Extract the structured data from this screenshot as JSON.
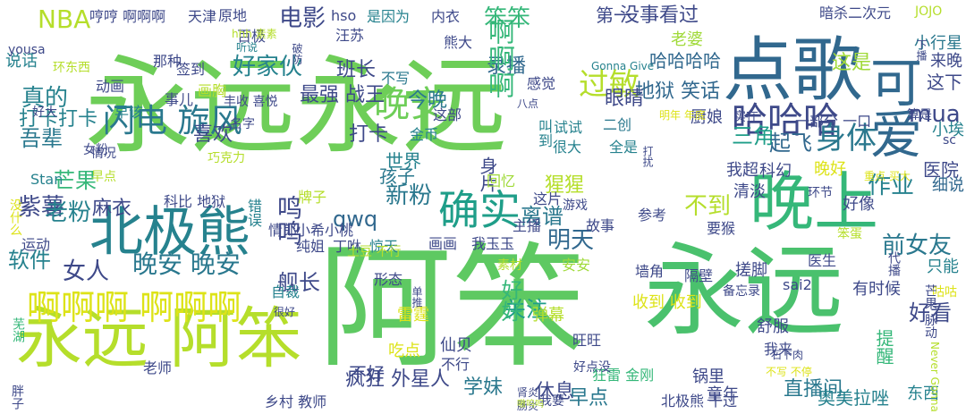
{
  "words": [
    {
      "text": "永远永远",
      "color": "#6ece58"
    },
    {
      "text": "阿笨",
      "color": "#5ec962"
    },
    {
      "text": "永远",
      "color": "#4ac16d"
    },
    {
      "text": "点歌",
      "color": "#31688e"
    },
    {
      "text": "晚上",
      "color": "#35b779"
    },
    {
      "text": "永远 阿笨",
      "color": "#b5de2b"
    },
    {
      "text": "北极熊",
      "color": "#26828e"
    },
    {
      "text": "啊啊啊 啊啊啊",
      "color": "#dde318"
    },
    {
      "text": "可爱",
      "color": "#31688e"
    },
    {
      "text": "确实",
      "color": "#1f9e89"
    },
    {
      "text": "哈哈哈",
      "color": "#3e4989"
    },
    {
      "text": "闪电 旋风",
      "color": "#2a788e"
    },
    {
      "text": "晚安",
      "color": "#6ece58"
    },
    {
      "text": "过敏",
      "color": "#b5de2b"
    },
    {
      "text": "身体",
      "color": "#2a788e"
    },
    {
      "text": "晚安 晚安",
      "color": "#2a788e"
    },
    {
      "text": "NBA",
      "color": "#b5de2b"
    },
    {
      "text": "电影",
      "color": "#3e4989"
    },
    {
      "text": "笨笨",
      "color": "#35b779"
    },
    {
      "text": "女人",
      "color": "#3e4989"
    },
    {
      "text": "真的",
      "color": "#26828e"
    },
    {
      "text": "打卡",
      "color": "#3e4989"
    },
    {
      "text": "吾辈",
      "color": "#2a788e"
    },
    {
      "text": "芒果",
      "color": "#35b779"
    },
    {
      "text": "好家伙",
      "color": "#26828e"
    },
    {
      "text": "离谱",
      "color": "#2a788e"
    },
    {
      "text": "录播",
      "color": "#31688e"
    },
    {
      "text": "新粉",
      "color": "#2a788e"
    },
    {
      "text": "明天",
      "color": "#31688e"
    },
    {
      "text": "关注",
      "color": "#1f9e89"
    },
    {
      "text": "好看",
      "color": "#3e4989"
    },
    {
      "text": "前女友",
      "color": "#2a788e"
    },
    {
      "text": "作业",
      "color": "#26828e"
    },
    {
      "text": "没事看过",
      "color": "#3e4989"
    },
    {
      "text": "qwq",
      "color": "#31688e"
    },
    {
      "text": "鸣鸣",
      "color": "#3e4989"
    },
    {
      "text": "不到",
      "color": "#b5de2b"
    },
    {
      "text": "紫薯",
      "color": "#3e4989"
    },
    {
      "text": "老粉",
      "color": "#26828e"
    },
    {
      "text": "啊啊啊",
      "color": "#35b779"
    },
    {
      "text": "地狱 笑话",
      "color": "#31688e"
    },
    {
      "text": "三角",
      "color": "#1f9e89"
    },
    {
      "text": "起飞",
      "color": "#31688e"
    },
    {
      "text": "mua",
      "color": "#3e4989"
    },
    {
      "text": "这是",
      "color": "#a0da39"
    },
    {
      "text": "班长",
      "color": "#3e4989"
    },
    {
      "text": "学妹",
      "color": "#2a788e"
    },
    {
      "text": "疯狂 外星人",
      "color": "#3e4989"
    },
    {
      "text": "哈哈哈哈",
      "color": "#31688e"
    },
    {
      "text": "舰长",
      "color": "#3e4989"
    },
    {
      "text": "软件",
      "color": "#26828e"
    },
    {
      "text": "麻衣",
      "color": "#3e4989"
    },
    {
      "text": "打卡打卡",
      "color": "#26828e"
    },
    {
      "text": "最强 战王",
      "color": "#3e4989"
    },
    {
      "text": "今晚",
      "color": "#2a788e"
    },
    {
      "text": "喜欢",
      "color": "#3e4989"
    },
    {
      "text": "直播间",
      "color": "#2a788e"
    },
    {
      "text": "奥美拉唑",
      "color": "#26828e"
    },
    {
      "text": "身片",
      "color": "#3e4989"
    },
    {
      "text": "休息",
      "color": "#3e4989"
    },
    {
      "text": "早点",
      "color": "#2a788e"
    },
    {
      "text": "好好",
      "color": "#35b779"
    },
    {
      "text": "眼睛",
      "color": "#3e4989"
    },
    {
      "text": "猩猩",
      "color": "#b5de2b"
    },
    {
      "text": "世界",
      "color": "#26828e"
    },
    {
      "text": "孩子",
      "color": "#2a788e"
    },
    {
      "text": "说话",
      "color": "#26828e"
    },
    {
      "text": "第一",
      "color": "#3e4989"
    },
    {
      "text": "老婆",
      "color": "#a0da39"
    },
    {
      "text": "小行星",
      "color": "#2a788e"
    },
    {
      "text": "来晚",
      "color": "#3e4989"
    },
    {
      "text": "这下",
      "color": "#3e4989"
    },
    {
      "text": "小埃",
      "color": "#26828e"
    },
    {
      "text": "厨娘",
      "color": "#3e4989"
    },
    {
      "text": "我超",
      "color": "#3e4989"
    },
    {
      "text": "科幻",
      "color": "#3e4989"
    },
    {
      "text": "医院",
      "color": "#3e4989"
    },
    {
      "text": "细说",
      "color": "#31688e"
    },
    {
      "text": "晚好",
      "color": "#dde318"
    },
    {
      "text": "好像",
      "color": "#3e4989"
    },
    {
      "text": "清淡",
      "color": "#3e4989"
    },
    {
      "text": "搓脚",
      "color": "#3e4989"
    },
    {
      "text": "只能",
      "color": "#26828e"
    },
    {
      "text": "锅里",
      "color": "#3e4989"
    },
    {
      "text": "童年",
      "color": "#3e4989"
    },
    {
      "text": "提醒",
      "color": "#35b779"
    },
    {
      "text": "有时候",
      "color": "#3e4989"
    },
    {
      "text": "舒服",
      "color": "#3e4989"
    },
    {
      "text": "东西",
      "color": "#26828e"
    },
    {
      "text": "吃点",
      "color": "#dde318"
    },
    {
      "text": "不好",
      "color": "#3e4989"
    },
    {
      "text": "仙贝",
      "color": "#3e4989"
    },
    {
      "text": "雷霆",
      "color": "#dde318"
    },
    {
      "text": "弹幕",
      "color": "#b5de2b"
    },
    {
      "text": "哼哼 啊啊啊",
      "color": "#3e4989"
    },
    {
      "text": "天津",
      "color": "#3e4989"
    },
    {
      "text": "原地",
      "color": "#3e4989"
    },
    {
      "text": "hso",
      "color": "#3e4989"
    },
    {
      "text": "是因为",
      "color": "#26828e"
    },
    {
      "text": "内衣",
      "color": "#3e4989"
    },
    {
      "text": "暗杀二次元",
      "color": "#3e4989"
    },
    {
      "text": "JOJO",
      "color": "#b5de2b"
    },
    {
      "text": "熊大",
      "color": "#3e4989"
    },
    {
      "text": "汪苏",
      "color": "#3e4989"
    },
    {
      "text": "百极",
      "color": "#3e4989"
    },
    {
      "text": "签到",
      "color": "#3e4989"
    },
    {
      "text": "那种",
      "color": "#3e4989"
    },
    {
      "text": "动画",
      "color": "#3e4989"
    },
    {
      "text": "事儿",
      "color": "#3e4989"
    },
    {
      "text": "画胸",
      "color": "#b5de2b"
    },
    {
      "text": "不写",
      "color": "#2a788e"
    },
    {
      "text": "早该",
      "color": "#26828e"
    },
    {
      "text": "这部",
      "color": "#3e4989"
    },
    {
      "text": "金币",
      "color": "#26828e"
    },
    {
      "text": "二创",
      "color": "#2a788e"
    },
    {
      "text": "试试",
      "color": "#26828e"
    },
    {
      "text": "全是",
      "color": "#26828e"
    },
    {
      "text": "很大",
      "color": "#26828e"
    },
    {
      "text": "回忆",
      "color": "#a0da39"
    },
    {
      "text": "这片",
      "color": "#3e4989"
    },
    {
      "text": "主播",
      "color": "#3e4989"
    },
    {
      "text": "游戏",
      "color": "#3e4989"
    },
    {
      "text": "故事",
      "color": "#3e4989"
    },
    {
      "text": "要猴",
      "color": "#3e4989"
    },
    {
      "text": "参考",
      "color": "#3e4989"
    },
    {
      "text": "画画",
      "color": "#3e4989"
    },
    {
      "text": "我玉玉",
      "color": "#3e4989"
    },
    {
      "text": "安安",
      "color": "#a0da39"
    },
    {
      "text": "素材",
      "color": "#b5de2b"
    },
    {
      "text": "丁咻",
      "color": "#3e4989"
    },
    {
      "text": "惊天",
      "color": "#26828e"
    },
    {
      "text": "形态",
      "color": "#3e4989"
    },
    {
      "text": "自裁",
      "color": "#26828e"
    },
    {
      "text": "收到 收到",
      "color": "#dde318"
    },
    {
      "text": "墙角",
      "color": "#3e4989"
    },
    {
      "text": "隔壁",
      "color": "#3e4989"
    },
    {
      "text": "医生",
      "color": "#3e4989"
    },
    {
      "text": "备忘录",
      "color": "#3e4989"
    },
    {
      "text": "sai2",
      "color": "#3e4989"
    },
    {
      "text": "咕咕",
      "color": "#dde318"
    },
    {
      "text": "旺旺",
      "color": "#3e4989"
    },
    {
      "text": "狂雷 金刚",
      "color": "#35b779"
    },
    {
      "text": "我来",
      "color": "#3e4989"
    },
    {
      "text": "好点没",
      "color": "#3e4989"
    },
    {
      "text": "北极熊 干过",
      "color": "#3e4989"
    },
    {
      "text": "乡村 教师",
      "color": "#3e4989"
    },
    {
      "text": "我要",
      "color": "#3e4989"
    },
    {
      "text": "肠炎",
      "color": "#3e4989"
    },
    {
      "text": "老师",
      "color": "#3e4989"
    },
    {
      "text": "不行",
      "color": "#3e4989"
    },
    {
      "text": "土豆 不行",
      "color": "#b5de2b"
    },
    {
      "text": "情郎",
      "color": "#3e4989"
    },
    {
      "text": "小希小桃",
      "color": "#3e4989"
    },
    {
      "text": "纯姐",
      "color": "#3e4989"
    },
    {
      "text": "运动",
      "color": "#3e4989"
    },
    {
      "text": "错误",
      "color": "#26828e"
    },
    {
      "text": "科比 地狱",
      "color": "#3e4989"
    },
    {
      "text": "牌子",
      "color": "#b5de2b"
    },
    {
      "text": "巧克力",
      "color": "#b5de2b"
    },
    {
      "text": "名字",
      "color": "#3e4989"
    },
    {
      "text": "情况",
      "color": "#3e4989"
    },
    {
      "text": "女粉",
      "color": "#3e4989"
    },
    {
      "text": "早点",
      "color": "#b5de2b"
    },
    {
      "text": "丰收 喜悦",
      "color": "#3e4989"
    },
    {
      "text": "好大",
      "color": "#3e4989"
    },
    {
      "text": "环东西",
      "color": "#b5de2b"
    },
    {
      "text": "yousa",
      "color": "#3e4989"
    },
    {
      "text": "hhh 素素",
      "color": "#b5de2b"
    },
    {
      "text": "Gonna Give",
      "color": "#26828e"
    },
    {
      "text": "一部分 一口",
      "color": "#3e4989"
    },
    {
      "text": "实在",
      "color": "#3e4989"
    },
    {
      "text": "明年 年底",
      "color": "#dde318"
    },
    {
      "text": "算是",
      "color": "#3e4989"
    },
    {
      "text": "sc",
      "color": "#3e4989"
    },
    {
      "text": "感觉",
      "color": "#3e4989"
    },
    {
      "text": "八点",
      "color": "#3e4989"
    },
    {
      "text": "Stan",
      "color": "#26828e"
    },
    {
      "text": "重点 买大",
      "color": "#dde318"
    },
    {
      "text": "环节",
      "color": "#3e4989"
    },
    {
      "text": "芒果 脉动",
      "color": "#3e4989"
    },
    {
      "text": "Never Gonna",
      "color": "#b5de2b"
    },
    {
      "text": "笨蛋",
      "color": "#b5de2b"
    },
    {
      "text": "代播",
      "color": "#3e4989"
    },
    {
      "text": "芜湖",
      "color": "#35b779"
    },
    {
      "text": "胖子",
      "color": "#3e4989"
    },
    {
      "text": "没什么",
      "color": "#dde318"
    },
    {
      "text": "听说",
      "color": "#26828e"
    },
    {
      "text": "破防",
      "color": "#3e4989"
    },
    {
      "text": "下播",
      "color": "#3e4989"
    },
    {
      "text": "叫到",
      "color": "#26828e"
    },
    {
      "text": "打扰",
      "color": "#3e4989"
    },
    {
      "text": "石下肉",
      "color": "#3e4989"
    },
    {
      "text": "肾炎",
      "color": "#3e4989"
    },
    {
      "text": "嗷呜呜",
      "color": "#b5de2b"
    },
    {
      "text": "单推",
      "color": "#3e4989"
    },
    {
      "text": "不写 不停",
      "color": "#dde318"
    },
    {
      "text": "很好",
      "color": "#3e4989"
    },
    {
      "text": "跟不上",
      "color": "#3e4989"
    }
  ]
}
